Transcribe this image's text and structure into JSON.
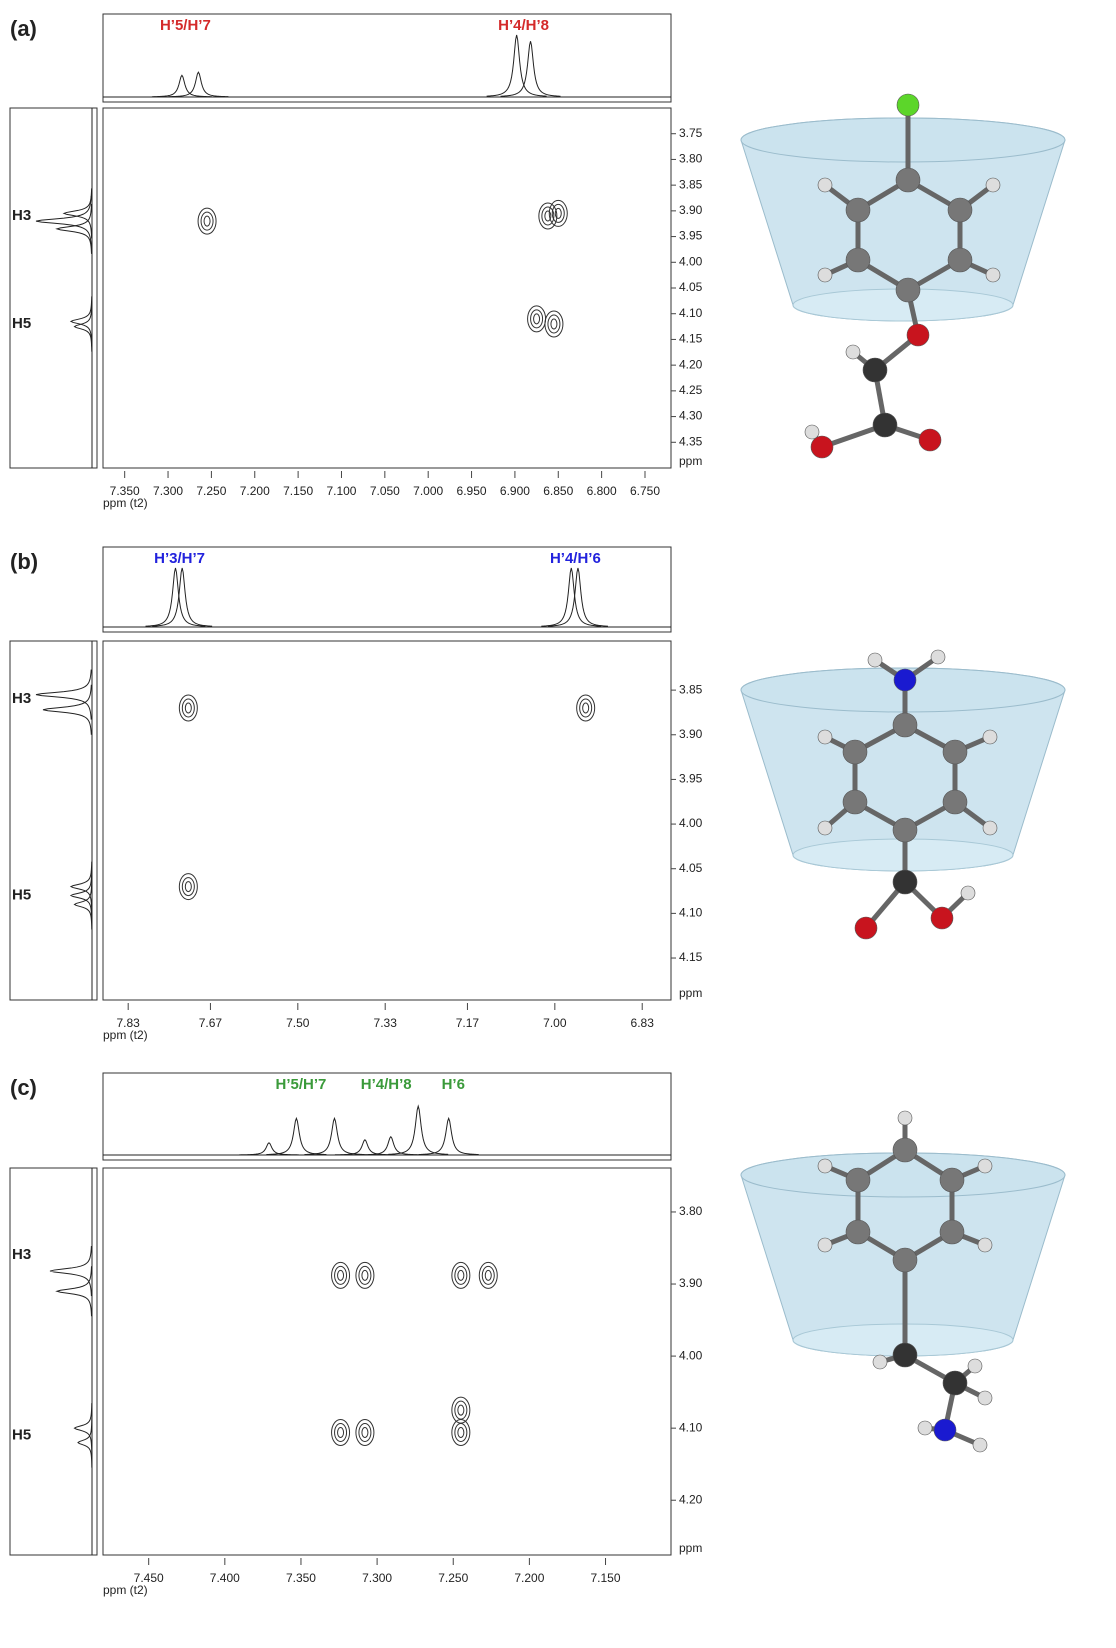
{
  "chart_data": [
    {
      "type": "contour",
      "label": "(a)",
      "x_label": "ppm (t2)",
      "y_label": "ppm",
      "color": "#d42a2a",
      "xlim": [
        7.375,
        6.72
      ],
      "ylim": [
        3.7,
        4.4
      ],
      "xticks": [
        {
          "value": 7.35,
          "label": "7.350"
        },
        {
          "value": 7.3,
          "label": "7.300"
        },
        {
          "value": 7.25,
          "label": "7.250"
        },
        {
          "value": 7.2,
          "label": "7.200"
        },
        {
          "value": 7.15,
          "label": "7.150"
        },
        {
          "value": 7.1,
          "label": "7.100"
        },
        {
          "value": 7.05,
          "label": "7.050"
        },
        {
          "value": 7.0,
          "label": "7.000"
        },
        {
          "value": 6.95,
          "label": "6.950"
        },
        {
          "value": 6.9,
          "label": "6.900"
        },
        {
          "value": 6.85,
          "label": "6.850"
        },
        {
          "value": 6.8,
          "label": "6.800"
        },
        {
          "value": 6.75,
          "label": "6.750"
        }
      ],
      "yticks": [
        3.75,
        {
          "value": 3.8,
          "label": "3.80"
        },
        3.85,
        {
          "value": 3.9,
          "label": "3.90"
        },
        3.95,
        {
          "value": 4.0,
          "label": "4.00"
        },
        4.05,
        {
          "value": 4.1,
          "label": "4.10"
        },
        4.15,
        {
          "value": 4.2,
          "label": "4.20"
        },
        4.25,
        {
          "value": 4.3,
          "label": "4.30"
        },
        4.35
      ],
      "annotations": [
        {
          "text": "H’5/H’7",
          "x": 7.28
        },
        {
          "text": "H’4/H’8",
          "x": 6.89
        }
      ],
      "side_labels": [
        {
          "text": "H3",
          "y": 3.91
        },
        {
          "text": "H5",
          "y": 4.12
        }
      ],
      "top_peaks": {
        "ppm": [
          7.284,
          7.265,
          6.898,
          6.882
        ],
        "height": [
          0.35,
          0.4,
          1,
          0.9
        ]
      },
      "left_peaks": {
        "ppm": [
          3.905,
          3.92,
          3.935,
          4.115,
          4.125
        ],
        "height": [
          0.4,
          0.8,
          0.5,
          0.3,
          0.25
        ]
      },
      "cross_peaks": {
        "x": [
          7.255,
          6.862,
          6.85,
          6.875,
          6.855
        ],
        "y": [
          3.92,
          3.91,
          3.905,
          4.11,
          4.12
        ]
      }
    },
    {
      "type": "contour",
      "label": "(b)",
      "x_label": "ppm (t2)",
      "y_label": "ppm",
      "color": "#2222dd",
      "xlim": [
        7.879,
        6.774
      ],
      "ylim": [
        3.795,
        4.197
      ],
      "xticks": [
        7.83,
        7.67,
        {
          "value": 7.5,
          "label": "7.50"
        },
        7.33,
        7.17,
        {
          "value": 7.0,
          "label": "7.00"
        },
        6.83
      ],
      "yticks": [
        3.85,
        {
          "value": 3.9,
          "label": "3.90"
        },
        3.95,
        {
          "value": 4.0,
          "label": "4.00"
        },
        4.05,
        {
          "value": 4.1,
          "label": "4.10"
        },
        4.15
      ],
      "annotations": [
        {
          "text": "H’3/H’7",
          "x": 7.73
        },
        {
          "text": "H’4/H’6",
          "x": 6.96
        }
      ],
      "side_labels": [
        {
          "text": "H3",
          "y": 3.86
        },
        {
          "text": "H5",
          "y": 4.08
        }
      ],
      "top_peaks": {
        "ppm": [
          7.738,
          7.725,
          6.968,
          6.955
        ],
        "height": [
          1,
          1,
          1,
          1
        ]
      },
      "left_peaks": {
        "ppm": [
          3.855,
          3.872,
          4.07,
          4.08,
          4.09
        ],
        "height": [
          0.8,
          0.7,
          0.3,
          0.3,
          0.25
        ]
      },
      "cross_peaks": {
        "x": [
          7.713,
          6.94,
          7.713
        ],
        "y": [
          3.87,
          3.87,
          4.07
        ]
      }
    },
    {
      "type": "contour",
      "label": "(c)",
      "x_label": "ppm (t2)",
      "y_label": "ppm",
      "color": "#3a9a3a",
      "xlim": [
        7.48,
        7.107
      ],
      "ylim": [
        3.739,
        4.276
      ],
      "xticks": [
        {
          "value": 7.45,
          "label": "7.450"
        },
        {
          "value": 7.4,
          "label": "7.400"
        },
        {
          "value": 7.35,
          "label": "7.350"
        },
        {
          "value": 7.3,
          "label": "7.300"
        },
        {
          "value": 7.25,
          "label": "7.250"
        },
        {
          "value": 7.2,
          "label": "7.200"
        },
        {
          "value": 7.15,
          "label": "7.150"
        }
      ],
      "yticks": [
        {
          "value": 3.8,
          "label": "3.80"
        },
        {
          "value": 3.9,
          "label": "3.90"
        },
        {
          "value": 4.0,
          "label": "4.00"
        },
        {
          "value": 4.1,
          "label": "4.10"
        },
        {
          "value": 4.2,
          "label": "4.20"
        }
      ],
      "annotations": [
        {
          "text": "H’5/H’7",
          "x": 7.35
        },
        {
          "text": "H’4/H’8",
          "x": 7.294
        },
        {
          "text": "H’6",
          "x": 7.25
        }
      ],
      "side_labels": [
        {
          "text": "H3",
          "y": 3.86
        },
        {
          "text": "H5",
          "y": 4.11
        }
      ],
      "top_peaks": {
        "ppm": [
          7.371,
          7.353,
          7.328,
          7.308,
          7.291,
          7.273,
          7.253
        ],
        "height": [
          0.2,
          0.6,
          0.6,
          0.25,
          0.3,
          0.8,
          0.6
        ]
      },
      "left_peaks": {
        "ppm": [
          3.882,
          3.91,
          4.1,
          4.12
        ],
        "height": [
          0.6,
          0.5,
          0.25,
          0.2
        ]
      },
      "cross_peaks": {
        "x": [
          7.324,
          7.308,
          7.245,
          7.227,
          7.245,
          7.324,
          7.308,
          7.245
        ],
        "y": [
          3.888,
          3.888,
          3.888,
          3.888,
          4.075,
          4.106,
          4.106,
          4.106
        ]
      }
    }
  ]
}
